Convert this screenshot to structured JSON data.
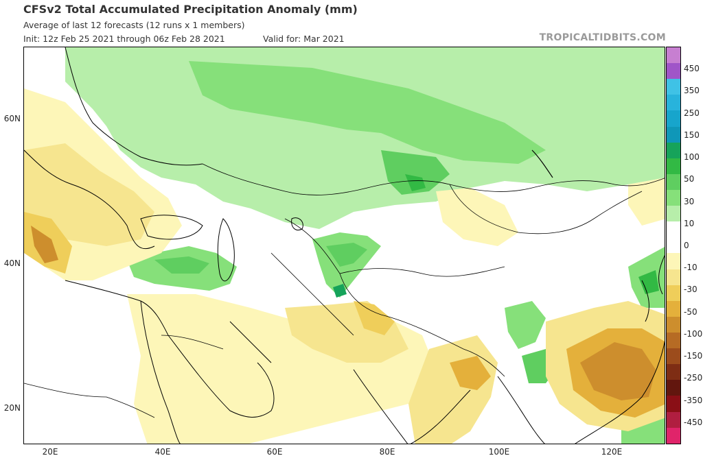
{
  "header": {
    "title": "CFSv2 Total Accumulated Precipitation Anomaly (mm)",
    "subtitle": "Average of last 12 forecasts (12 runs x 1 members)",
    "init": "Init: 12z Feb 25 2021 through 06z Feb 28 2021",
    "valid": "Valid for: Mar 2021",
    "brand": "TROPICALTIDBITS.COM"
  },
  "axes": {
    "lat_labels": [
      "60N",
      "40N",
      "20N"
    ],
    "lon_labels": [
      "20E",
      "40E",
      "60E",
      "80E",
      "100E",
      "120E"
    ],
    "lat_range": [
      15,
      69
    ],
    "lon_range": [
      15,
      130
    ]
  },
  "colorbar": {
    "labels": [
      "450",
      "350",
      "250",
      "150",
      "100",
      "50",
      "30",
      "10",
      "0",
      "-10",
      "-30",
      "-50",
      "-100",
      "-150",
      "-250",
      "-350",
      "-450"
    ],
    "colors": [
      "#c77fd1",
      "#a055c8",
      "#3fc2e6",
      "#28b3dc",
      "#17a5cc",
      "#0f97b8",
      "#16a35a",
      "#32b944",
      "#5fce60",
      "#86e07a",
      "#b7eeaa",
      "#ffffff",
      "#ffffff",
      "#fdf6b8",
      "#f6e58f",
      "#efce5a",
      "#e4b03b",
      "#cd8e2d",
      "#b66b24",
      "#9c4c1c",
      "#7e2d14",
      "#62160e",
      "#8a0f16",
      "#b01e40",
      "#e0246a"
    ]
  },
  "map": {
    "features": [
      "precipitation-anomaly-field",
      "coastlines",
      "country-borders"
    ]
  }
}
